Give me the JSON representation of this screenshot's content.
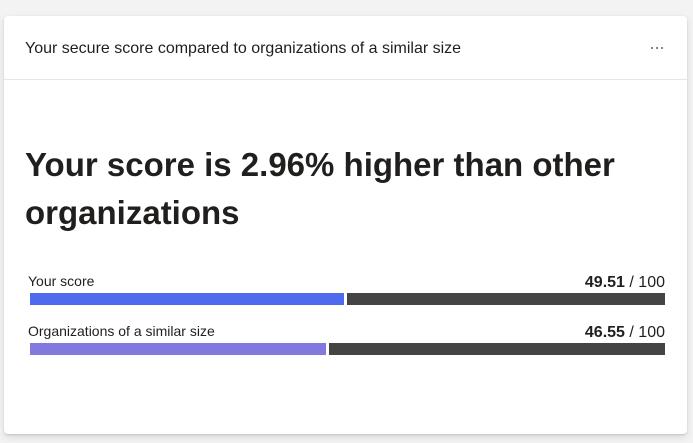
{
  "card": {
    "title": "Your secure score compared to organizations of a similar size",
    "more_label": "More actions"
  },
  "headline": "Your score is 2.96% higher than other organizations",
  "metrics": [
    {
      "label": "Your score",
      "value": "49.51",
      "separator": " / ",
      "max": "100",
      "fraction": 0.4951,
      "color": "#4f6bed"
    },
    {
      "label": "Organizations of a similar size",
      "value": "46.55",
      "separator": " / ",
      "max": "100",
      "fraction": 0.4655,
      "color": "#8378de"
    }
  ],
  "colors": {
    "track": "#444444",
    "card_background": "#ffffff",
    "page_background": "#f3f3f3"
  }
}
